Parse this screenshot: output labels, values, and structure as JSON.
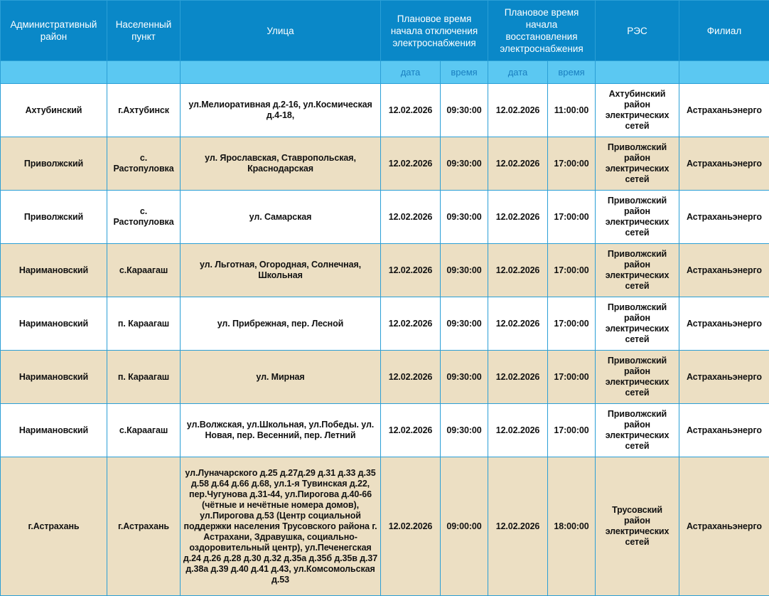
{
  "headers": {
    "district": "Административный район",
    "locality": "Населенный пункт",
    "street": "Улица",
    "start": "Плановое время начала отключения электроснабжения",
    "restore": "Плановое время начала восстановления электроснабжения",
    "res": "РЭС",
    "branch": "Филиал"
  },
  "subheaders": {
    "date": "дата",
    "time": "время"
  },
  "colors": {
    "header": "#0a88c8",
    "subheader": "#5bc8f2",
    "stripe": "#ecdfc3"
  },
  "rows": [
    {
      "district": "Ахтубинский",
      "locality": "г.Ахтубинск",
      "street": "ул.Мелиоративная д.2-16, ул.Космическая д.4-18,",
      "start_date": "12.02.2026",
      "start_time": "09:30:00",
      "end_date": "12.02.2026",
      "end_time": "11:00:00",
      "res": "Ахтубинский район электрических сетей",
      "branch": "Астраханьэнерго"
    },
    {
      "district": "Приволжский",
      "locality": "с. Растопуловка",
      "street": "ул. Ярославская, Ставропольская, Краснодарская",
      "start_date": "12.02.2026",
      "start_time": "09:30:00",
      "end_date": "12.02.2026",
      "end_time": "17:00:00",
      "res": "Приволжский район электрических сетей",
      "branch": "Астраханьэнерго"
    },
    {
      "district": "Приволжский",
      "locality": "с. Растопуловка",
      "street": "ул. Самарская",
      "start_date": "12.02.2026",
      "start_time": "09:30:00",
      "end_date": "12.02.2026",
      "end_time": "17:00:00",
      "res": "Приволжский район электрических сетей",
      "branch": "Астраханьэнерго"
    },
    {
      "district": "Наримановский",
      "locality": "с.Караагаш",
      "street": "ул. Льготная, Огородная, Солнечная, Школьная",
      "start_date": "12.02.2026",
      "start_time": "09:30:00",
      "end_date": "12.02.2026",
      "end_time": "17:00:00",
      "res": "Приволжский район электрических сетей",
      "branch": "Астраханьэнерго"
    },
    {
      "district": "Наримановский",
      "locality": "п. Караагаш",
      "street": "ул. Прибрежная, пер. Лесной",
      "start_date": "12.02.2026",
      "start_time": "09:30:00",
      "end_date": "12.02.2026",
      "end_time": "17:00:00",
      "res": "Приволжский район электрических сетей",
      "branch": "Астраханьэнерго"
    },
    {
      "district": "Наримановский",
      "locality": "п. Караагаш",
      "street": "ул. Мирная",
      "start_date": "12.02.2026",
      "start_time": "09:30:00",
      "end_date": "12.02.2026",
      "end_time": "17:00:00",
      "res": "Приволжский район электрических сетей",
      "branch": "Астраханьэнерго"
    },
    {
      "district": "Наримановский",
      "locality": "с.Караагаш",
      "street": "ул.Волжская, ул.Школьная, ул.Победы. ул. Новая, пер. Весенний, пер. Летний",
      "start_date": "12.02.2026",
      "start_time": "09:30:00",
      "end_date": "12.02.2026",
      "end_time": "17:00:00",
      "res": "Приволжский район электрических сетей",
      "branch": "Астраханьэнерго"
    },
    {
      "district": "г.Астрахань",
      "locality": "г.Астрахань",
      "street": "ул.Луначарского д.25 д.27д.29 д.31 д.33 д.35 д.58 д.64 д.66 д.68, ул.1-я Тувинская д.22, пер.Чугунова д.31-44, ул.Пирогова д.40-66 (чётные и нечётные номера домов), ул.Пирогова д.53 (Центр социальной поддержки населения Трусовского района г. Астрахани, Здравушка, социально-оздоровительный центр), ул.Печенегская д.24 д.26 д.28 д.30 д.32 д.35а д.35б д.35в д.37 д.38а д.39 д.40 д.41 д.43, ул.Комсомольская д.53",
      "start_date": "12.02.2026",
      "start_time": "09:00:00",
      "end_date": "12.02.2026",
      "end_time": "18:00:00",
      "res": "Трусовский район электрических сетей",
      "branch": "Астраханьэнерго"
    }
  ]
}
